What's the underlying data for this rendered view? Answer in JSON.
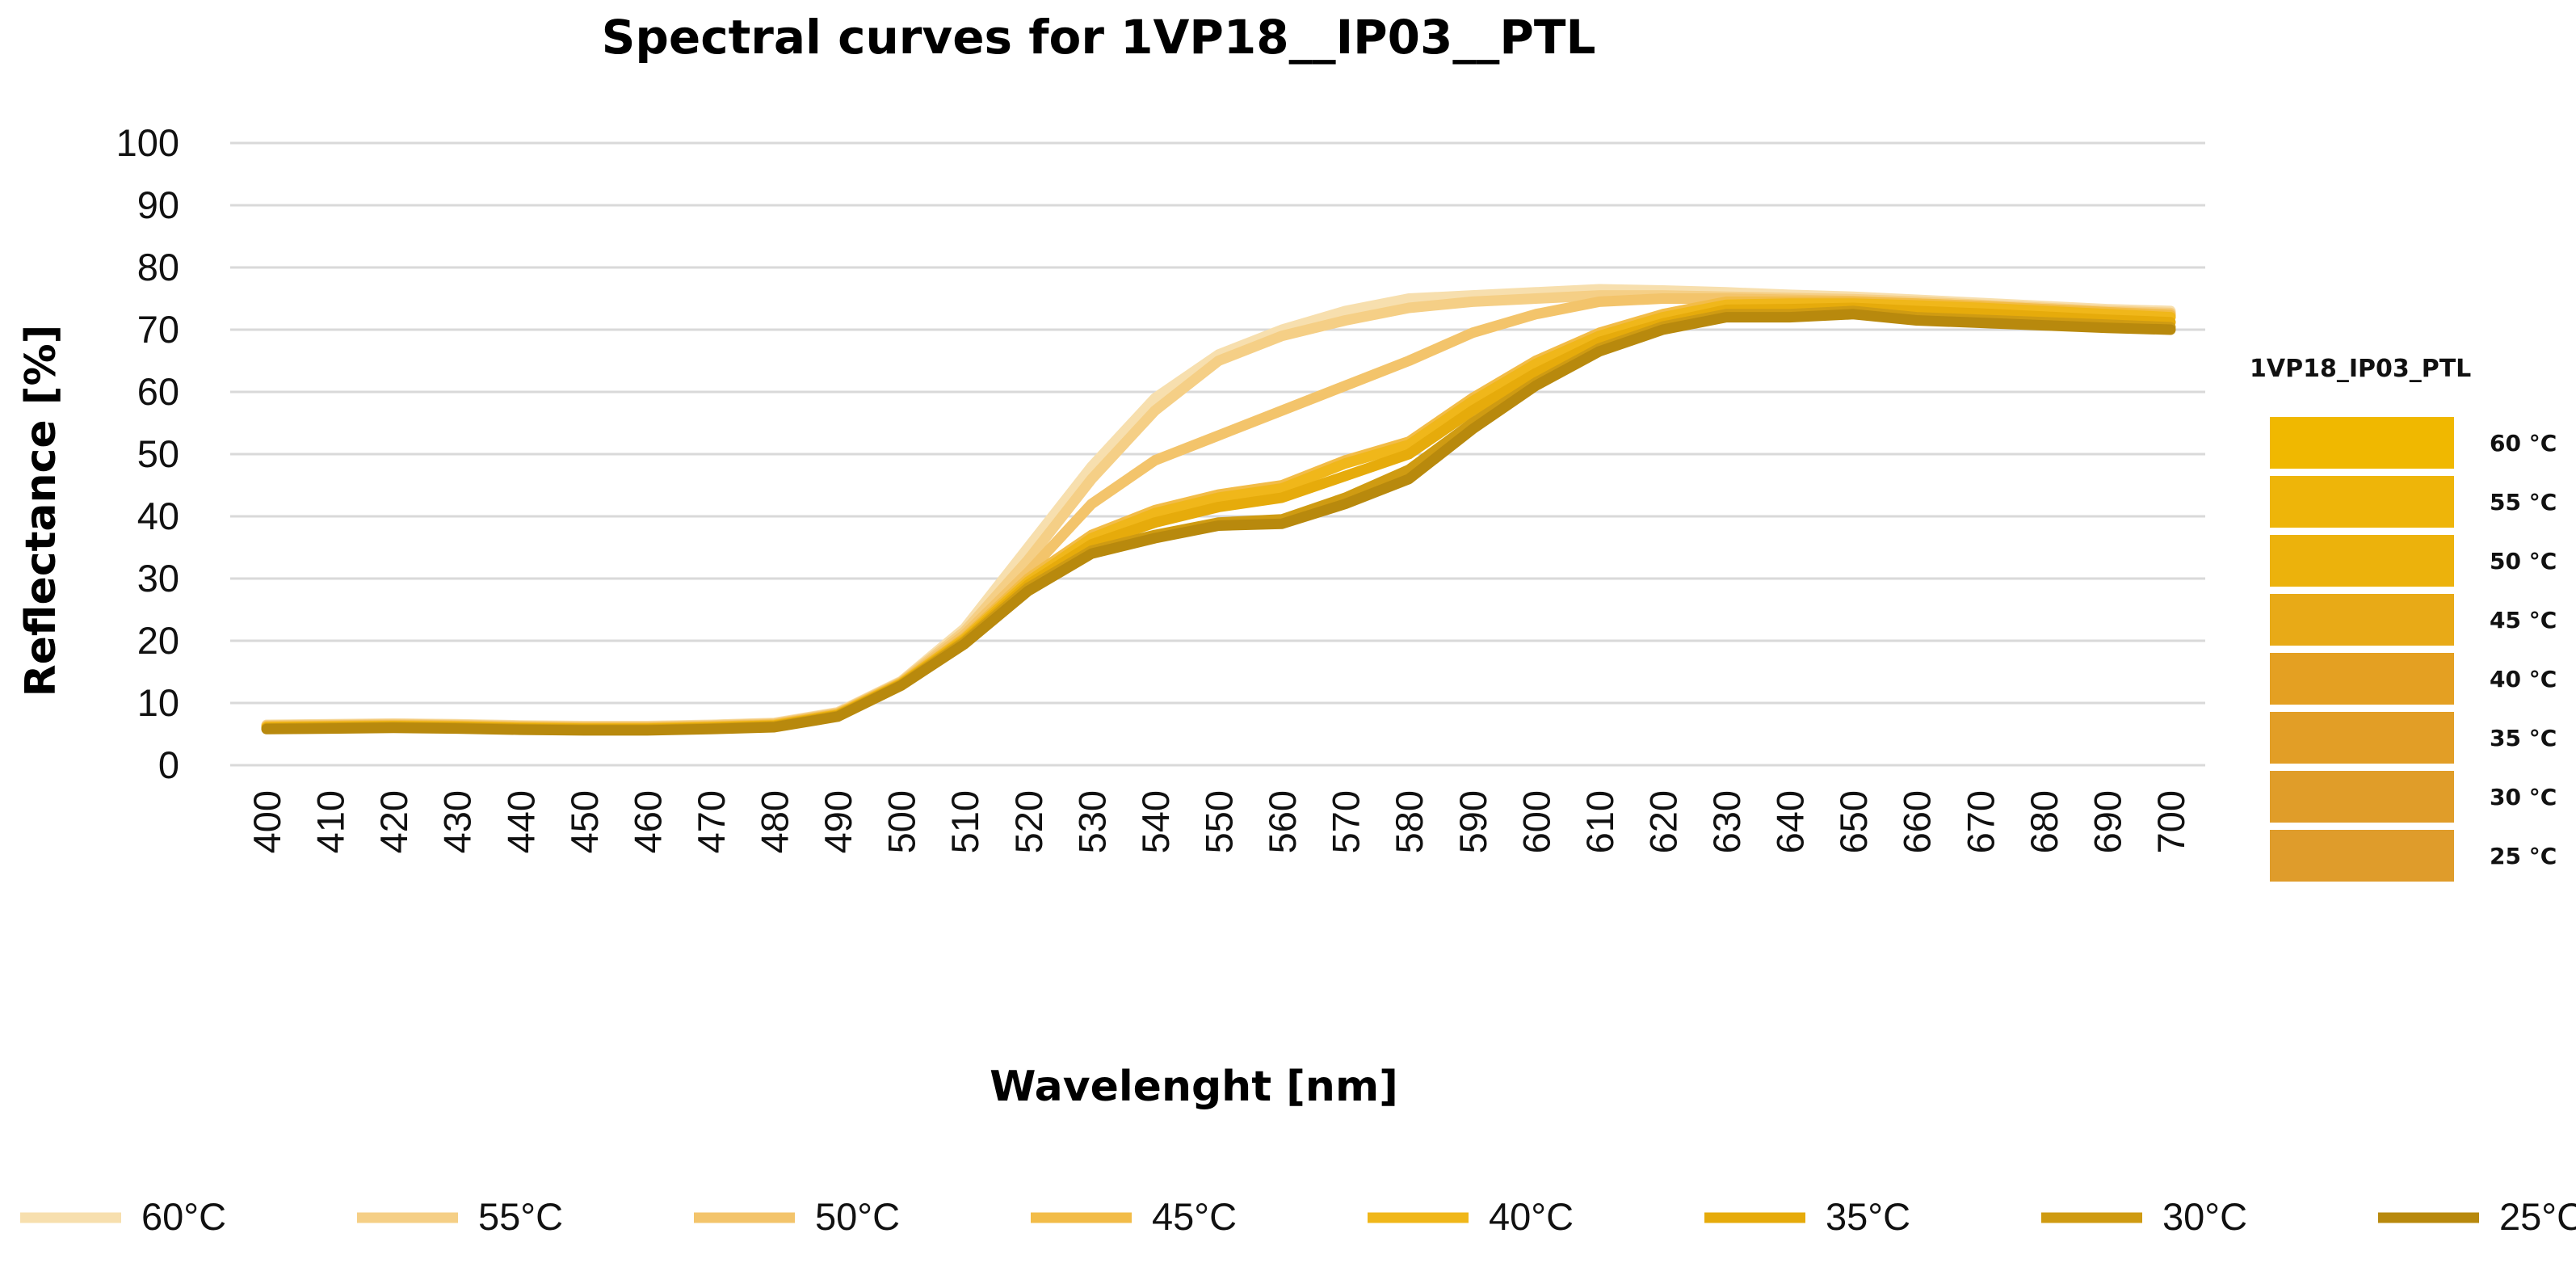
{
  "chart_data": {
    "type": "line",
    "title": "Spectral curves for 1VP18__IP03__PTL",
    "xlabel": "Wavelenght [nm]",
    "ylabel": "Reflectance [%]",
    "ylim": [
      0,
      100
    ],
    "yticks": [
      "0",
      "10",
      "20",
      "30",
      "40",
      "50",
      "60",
      "70",
      "80",
      "90",
      "100"
    ],
    "x": [
      400,
      410,
      420,
      430,
      440,
      450,
      460,
      470,
      480,
      490,
      500,
      510,
      520,
      530,
      540,
      550,
      560,
      570,
      580,
      590,
      600,
      610,
      620,
      630,
      640,
      650,
      660,
      670,
      680,
      690,
      700
    ],
    "grid": true,
    "legend_position": "bottom",
    "series": [
      {
        "name": "60°C",
        "color": "#f7dfae",
        "values": [
          6.5,
          6.6,
          6.7,
          6.6,
          6.4,
          6.3,
          6.3,
          6.5,
          6.8,
          8.5,
          13.5,
          22,
          35,
          48,
          59,
          66,
          70,
          73,
          75,
          75.5,
          76,
          76.5,
          76.3,
          76,
          75.6,
          75.3,
          74.8,
          74.3,
          73.8,
          73.3,
          73
        ]
      },
      {
        "name": "55°C",
        "color": "#f5cf86",
        "values": [
          6.4,
          6.5,
          6.6,
          6.5,
          6.3,
          6.2,
          6.2,
          6.4,
          6.7,
          8.4,
          13.4,
          21.5,
          33,
          46,
          57,
          65,
          69,
          71.5,
          73.5,
          74.5,
          75,
          75.5,
          75.5,
          75.3,
          75.1,
          74.9,
          74.5,
          74,
          73.5,
          73,
          72.7
        ]
      },
      {
        "name": "50°C",
        "color": "#f3c46b",
        "values": [
          6.3,
          6.4,
          6.5,
          6.4,
          6.2,
          6.1,
          6.1,
          6.3,
          6.6,
          8.3,
          13.3,
          21,
          31,
          42,
          49,
          53,
          57,
          61,
          65,
          69.5,
          72.5,
          74.5,
          75,
          75,
          74.8,
          74.6,
          74.2,
          73.8,
          73.3,
          72.8,
          72.5
        ]
      },
      {
        "name": "45°C",
        "color": "#f2bc48",
        "values": [
          6.2,
          6.3,
          6.4,
          6.3,
          6.1,
          6,
          6,
          6.2,
          6.5,
          8.2,
          13.2,
          20.5,
          30,
          37,
          41,
          43.5,
          45,
          49,
          52,
          59,
          65,
          69.5,
          72.5,
          74.5,
          74.5,
          74.5,
          74.2,
          73.8,
          73.3,
          72.8,
          72.3
        ]
      },
      {
        "name": "40°C",
        "color": "#f0b71a",
        "values": [
          6.1,
          6.2,
          6.3,
          6.2,
          6,
          5.9,
          5.9,
          6.1,
          6.4,
          8.1,
          13.1,
          20.3,
          29.5,
          36.5,
          40.5,
          43,
          44.5,
          48.5,
          51.5,
          58.5,
          64.5,
          69,
          72,
          74,
          74.2,
          74.2,
          73.9,
          73.5,
          73,
          72.5,
          72
        ]
      },
      {
        "name": "35°C",
        "color": "#e6ab0b",
        "values": [
          6,
          6.1,
          6.2,
          6.1,
          5.9,
          5.8,
          5.8,
          6,
          6.3,
          8,
          13,
          20,
          29,
          35.5,
          39,
          41.5,
          43,
          46.5,
          50,
          57,
          63,
          68,
          71,
          73.2,
          73.3,
          73.5,
          73,
          72.6,
          72.1,
          71.6,
          71.2
        ]
      },
      {
        "name": "30°C",
        "color": "#cf9b12",
        "values": [
          5.9,
          6,
          6.1,
          6,
          5.8,
          5.7,
          5.7,
          5.9,
          6.2,
          7.9,
          12.9,
          19.8,
          28.5,
          34.5,
          37,
          39,
          39.5,
          43,
          47.5,
          55,
          61.5,
          67,
          70.5,
          72.5,
          72.5,
          73,
          72,
          71.6,
          71.2,
          70.8,
          70.4
        ]
      },
      {
        "name": "25°C",
        "color": "#b8890d",
        "values": [
          5.8,
          5.9,
          6,
          5.9,
          5.7,
          5.6,
          5.6,
          5.8,
          6.1,
          7.8,
          12.8,
          19.5,
          28,
          34,
          36.5,
          38.5,
          38.8,
          42,
          46,
          54,
          61,
          66.5,
          70,
          72,
          72,
          72.5,
          71.5,
          71.1,
          70.7,
          70.3,
          70
        ]
      }
    ],
    "side_legend": {
      "title": "1VP18_IP03_PTL",
      "items": [
        {
          "label": "60 °C",
          "color": "#f0b800"
        },
        {
          "label": "55 °C",
          "color": "#eeb509"
        },
        {
          "label": "50 °C",
          "color": "#ecb20c"
        },
        {
          "label": "45 °C",
          "color": "#e8aa17"
        },
        {
          "label": "40 °C",
          "color": "#e4a022"
        },
        {
          "label": "35 °C",
          "color": "#e29e26"
        },
        {
          "label": "30 °C",
          "color": "#e09d29"
        },
        {
          "label": "25 °C",
          "color": "#df9c2b"
        }
      ]
    }
  }
}
